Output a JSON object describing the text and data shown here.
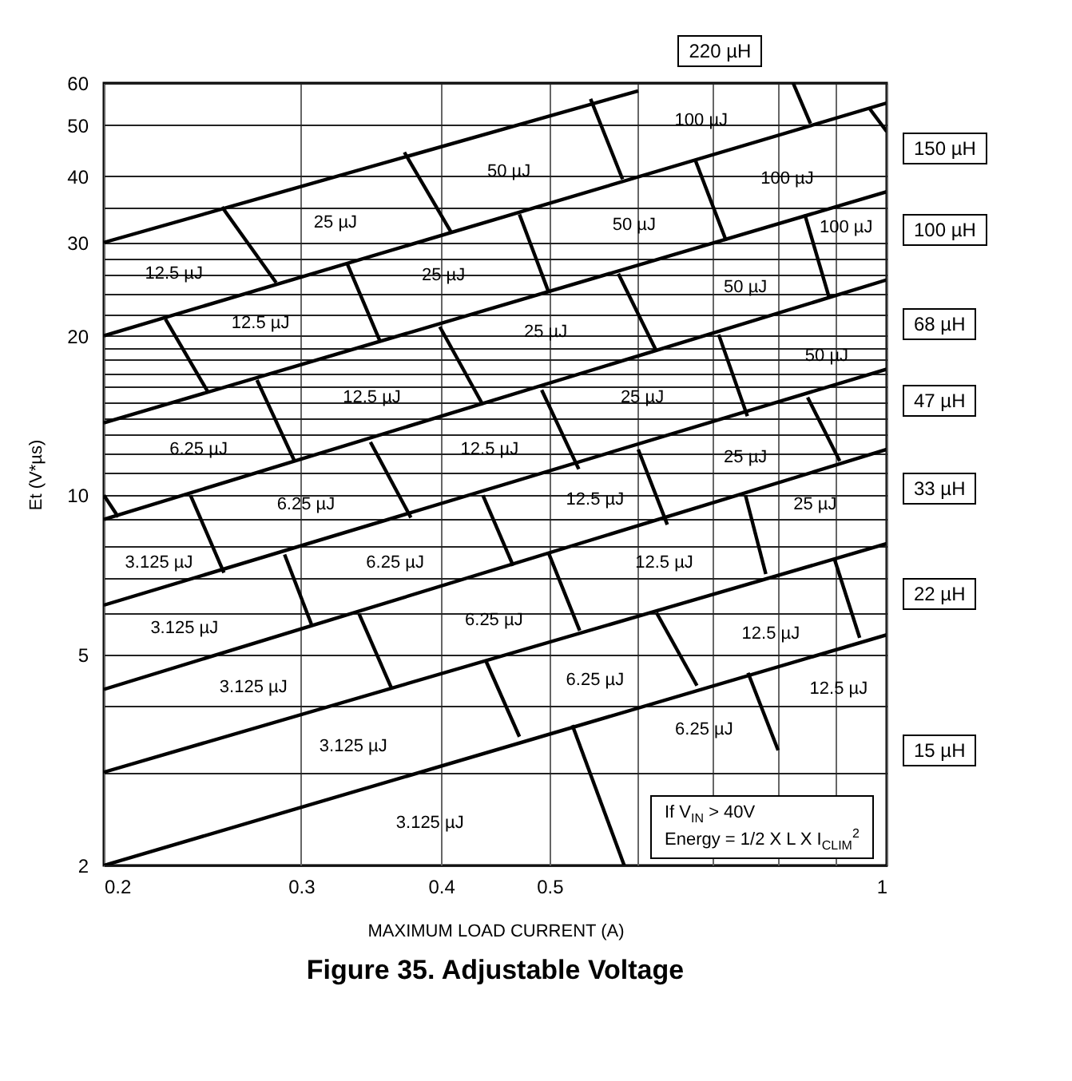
{
  "chart_data": {
    "type": "line",
    "title": "Figure 35. Adjustable Voltage",
    "xlabel": "MAXIMUM LOAD CURRENT (A)",
    "ylabel": "Et (V*µs)",
    "log": "xy",
    "grid": true,
    "xlim": [
      0.2,
      1
    ],
    "ylim": [
      2,
      60
    ],
    "xticks": [
      0.2,
      0.3,
      0.4,
      0.5,
      {
        "value": 0.6,
        "label": null
      },
      {
        "value": 0.7,
        "label": null
      },
      {
        "value": 0.8,
        "label": null
      },
      {
        "value": 0.9,
        "label": null
      },
      1
    ],
    "yticks": [
      2,
      {
        "value": 3,
        "label": null
      },
      {
        "value": 4,
        "label": null
      },
      5,
      {
        "value": 6,
        "label": null
      },
      {
        "value": 7,
        "label": null
      },
      {
        "value": 8,
        "label": null
      },
      {
        "value": 9,
        "label": null
      },
      10,
      {
        "value": 11,
        "label": null
      },
      {
        "value": 12,
        "label": null
      },
      {
        "value": 13,
        "label": null
      },
      {
        "value": 14,
        "label": null
      },
      {
        "value": 15,
        "label": null
      },
      {
        "value": 16,
        "label": null
      },
      {
        "value": 17,
        "label": null
      },
      {
        "value": 18,
        "label": null
      },
      {
        "value": 19,
        "label": null
      },
      20,
      {
        "value": 22,
        "label": null
      },
      {
        "value": 24,
        "label": null
      },
      {
        "value": 26,
        "label": null
      },
      {
        "value": 28,
        "label": null
      },
      30,
      {
        "value": 35,
        "label": null
      },
      40,
      50,
      60
    ],
    "series": [
      {
        "color": "#000000",
        "x": [
          0.2,
          0.6
        ],
        "values": [
          30,
          58
        ]
      },
      {
        "color": "#000000",
        "x": [
          0.2,
          1
        ],
        "values": [
          20,
          55
        ]
      },
      {
        "color": "#000000",
        "x": [
          0.2,
          1
        ],
        "values": [
          13.7,
          37.4
        ]
      },
      {
        "color": "#000000",
        "x": [
          0.2,
          1
        ],
        "values": [
          9,
          25.5
        ]
      },
      {
        "color": "#000000",
        "x": [
          0.2,
          1
        ],
        "values": [
          6.2,
          17.3
        ]
      },
      {
        "color": "#000000",
        "x": [
          0.2,
          1
        ],
        "values": [
          4.3,
          12.2
        ]
      },
      {
        "color": "#000000",
        "x": [
          0.2,
          1
        ],
        "values": [
          3,
          8.1
        ]
      },
      {
        "color": "#000000",
        "x": [
          0.2,
          1
        ],
        "values": [
          2,
          5.45
        ]
      },
      {
        "color": "#000000",
        "x": [
          0.2,
          0.206
        ],
        "values": [
          10,
          9.1
        ]
      },
      {
        "color": "#000000",
        "x": [
          0.239,
          0.256
        ],
        "values": [
          10,
          7.14
        ]
      },
      {
        "color": "#000000",
        "x": [
          0.227,
          0.248
        ],
        "values": [
          21.5,
          15.6
        ]
      },
      {
        "color": "#000000",
        "x": [
          0.255,
          0.285
        ],
        "values": [
          35,
          25.2
        ]
      },
      {
        "color": "#000000",
        "x": [
          0.274,
          0.296
        ],
        "values": [
          16.5,
          11.6
        ]
      },
      {
        "color": "#000000",
        "x": [
          0.33,
          0.353
        ],
        "values": [
          27.3,
          19.5
        ]
      },
      {
        "color": "#000000",
        "x": [
          0.371,
          0.409
        ],
        "values": [
          44.4,
          31.2
        ]
      },
      {
        "color": "#000000",
        "x": [
          0.346,
          0.376
        ],
        "values": [
          12.6,
          9.07
        ]
      },
      {
        "color": "#000000",
        "x": [
          0.399,
          0.436
        ],
        "values": [
          20.8,
          14.8
        ]
      },
      {
        "color": "#000000",
        "x": [
          0.436,
          0.464
        ],
        "values": [
          10,
          7.36
        ]
      },
      {
        "color": "#000000",
        "x": [
          0.29,
          0.307
        ],
        "values": [
          7.73,
          5.65
        ]
      },
      {
        "color": "#000000",
        "x": [
          0.338,
          0.361
        ],
        "values": [
          5.97,
          4.34
        ]
      },
      {
        "color": "#000000",
        "x": [
          0.439,
          0.47
        ],
        "values": [
          4.85,
          3.5
        ]
      },
      {
        "color": "#000000",
        "x": [
          0.499,
          0.532
        ],
        "values": [
          7.78,
          5.55
        ]
      },
      {
        "color": "#000000",
        "x": [
          0.623,
          0.677
        ],
        "values": [
          6,
          4.37
        ]
      },
      {
        "color": "#000000",
        "x": [
          0.524,
          0.583
        ],
        "values": [
          3.68,
          2
        ]
      },
      {
        "color": "#000000",
        "x": [
          0.752,
          0.8
        ],
        "values": [
          4.62,
          3.3
        ]
      },
      {
        "color": "#000000",
        "x": [
          0.748,
          0.78
        ],
        "values": [
          10,
          7.1
        ]
      },
      {
        "color": "#000000",
        "x": [
          0.898,
          0.946
        ],
        "values": [
          7.59,
          5.38
        ]
      },
      {
        "color": "#000000",
        "x": [
          0.544,
          0.581
        ],
        "values": [
          56,
          39.5
        ]
      },
      {
        "color": "#000000",
        "x": [
          0.825,
          0.855
        ],
        "values": [
          60,
          50.3
        ]
      },
      {
        "color": "#000000",
        "x": [
          0.966,
          1
        ],
        "values": [
          53.6,
          48.6
        ]
      },
      {
        "color": "#000000",
        "x": [
          0.47,
          0.499
        ],
        "values": [
          33.9,
          24.2
        ]
      },
      {
        "color": "#000000",
        "x": [
          0.675,
          0.719
        ],
        "values": [
          42.8,
          30.2
        ]
      },
      {
        "color": "#000000",
        "x": [
          0.845,
          0.888
        ],
        "values": [
          33.9,
          23.7
        ]
      },
      {
        "color": "#000000",
        "x": [
          0.576,
          0.623
        ],
        "values": [
          26.2,
          18.7
        ]
      },
      {
        "color": "#000000",
        "x": [
          0.708,
          0.751
        ],
        "values": [
          20.1,
          14.1
        ]
      },
      {
        "color": "#000000",
        "x": [
          0.492,
          0.531
        ],
        "values": [
          15.8,
          11.2
        ]
      },
      {
        "color": "#000000",
        "x": [
          0.85,
          0.908
        ],
        "values": [
          15.3,
          11.6
        ]
      },
      {
        "color": "#000000",
        "x": [
          0.6,
          0.637
        ],
        "values": [
          12.2,
          8.8
        ]
      }
    ],
    "annotations": [
      "220 µH",
      "150 µH",
      "100 µH",
      "68 µH",
      "47 µH",
      "33 µH",
      "22 µH",
      "15 µH",
      "100 µJ",
      "50 µJ",
      "100 µJ",
      "25 µJ",
      "50 µJ",
      "100 µJ",
      "12.5 µJ",
      "25 µJ",
      "50 µJ",
      "12.5 µJ",
      "25 µJ",
      "50 µJ",
      "12.5 µJ",
      "25 µJ",
      "6.25 µJ",
      "12.5 µJ",
      "25 µJ",
      "6.25 µJ",
      "12.5 µJ",
      "25 µJ",
      "3.125 µJ",
      "6.25 µJ",
      "12.5 µJ",
      "3.125 µJ",
      "6.25 µJ",
      "12.5 µJ",
      "3.125 µJ",
      "6.25 µJ",
      "12.5 µJ",
      "3.125 µJ",
      "6.25 µJ",
      "3.125 µJ",
      "If V$_{IN}$ > 40V",
      "Energy = 1/2 X L X I$_{CLIM}$$^{2}$"
    ]
  }
}
